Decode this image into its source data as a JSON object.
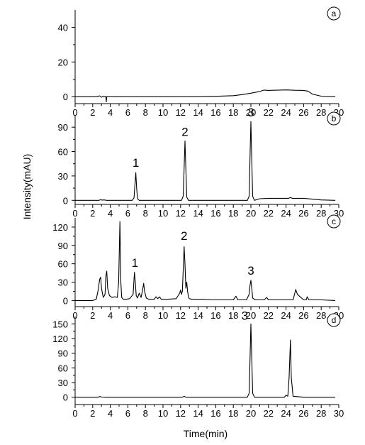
{
  "figure": {
    "ylabel": "Intensity(mAU)",
    "xlabel": "Time(min)"
  },
  "chart_data": [
    {
      "type": "line",
      "panel_label": "a",
      "x_ticks": [
        0,
        2,
        4,
        6,
        8,
        10,
        12,
        14,
        16,
        18,
        20,
        22,
        24,
        26,
        28,
        30
      ],
      "y_ticks": [
        0,
        20,
        40
      ],
      "xlim": [
        0,
        30
      ],
      "ylim": [
        -4,
        50
      ],
      "peak_labels": [],
      "series": [
        {
          "x": [
            0,
            2.5,
            2.8,
            3.0,
            3.2,
            3.5,
            3.55,
            3.6,
            3.8,
            6,
            10,
            14,
            16,
            18,
            19,
            20,
            21,
            21.5,
            22,
            24,
            25,
            26,
            26.5,
            27,
            28,
            29.6
          ],
          "y": [
            0,
            0,
            0.5,
            -0.3,
            0.2,
            0,
            -3,
            0,
            0,
            0,
            0,
            0,
            0.2,
            0.6,
            1.2,
            2.0,
            3.0,
            3.8,
            3.6,
            3.9,
            3.7,
            3.6,
            3.2,
            1.5,
            0.3,
            0
          ]
        }
      ]
    },
    {
      "type": "line",
      "panel_label": "b",
      "x_ticks": [
        0,
        2,
        4,
        6,
        8,
        10,
        12,
        14,
        16,
        18,
        20,
        22,
        24,
        26,
        28,
        30
      ],
      "y_ticks": [
        0,
        30,
        60,
        90
      ],
      "xlim": [
        0,
        30
      ],
      "ylim": [
        -5,
        105
      ],
      "peak_labels": [
        {
          "text": "1",
          "x": 6.9,
          "y": 36
        },
        {
          "text": "2",
          "x": 12.5,
          "y": 74
        },
        {
          "text": "3",
          "x": 20.0,
          "y": 98
        }
      ],
      "series": [
        {
          "x": [
            0,
            2.7,
            2.9,
            3.1,
            3.3,
            3.6,
            6.5,
            6.7,
            6.8,
            6.9,
            7.0,
            7.1,
            7.3,
            12.1,
            12.3,
            12.4,
            12.5,
            12.6,
            12.7,
            12.9,
            19.6,
            19.8,
            19.9,
            20.0,
            20.1,
            20.2,
            20.4,
            21,
            22,
            24.3,
            24.5,
            24.7,
            26,
            27,
            28,
            29.6
          ],
          "y": [
            0,
            0,
            0.8,
            0.3,
            0.5,
            0,
            0,
            3,
            18,
            34,
            15,
            2,
            0,
            0,
            5,
            40,
            73,
            40,
            4,
            0,
            0,
            5,
            55,
            97,
            50,
            5,
            0,
            2,
            2.5,
            2.5,
            3.5,
            2.5,
            2.5,
            1.5,
            0.5,
            0
          ]
        }
      ]
    },
    {
      "type": "line",
      "panel_label": "c",
      "x_ticks": [
        0,
        2,
        4,
        6,
        8,
        10,
        12,
        14,
        16,
        18,
        20,
        22,
        24,
        26,
        28,
        30
      ],
      "y_ticks": [
        0,
        30,
        60,
        90,
        120
      ],
      "xlim": [
        0,
        30
      ],
      "ylim": [
        -10,
        135
      ],
      "peak_labels": [
        {
          "text": "1",
          "x": 6.8,
          "y": 48
        },
        {
          "text": "2",
          "x": 12.4,
          "y": 92
        },
        {
          "text": "3",
          "x": 20.0,
          "y": 35
        }
      ],
      "series": [
        {
          "x": [
            0,
            2.0,
            2.4,
            2.6,
            2.8,
            2.9,
            3.0,
            3.2,
            3.4,
            3.5,
            3.6,
            3.7,
            3.9,
            4.2,
            4.5,
            4.8,
            4.95,
            5.1,
            5.2,
            5.3,
            5.5,
            5.8,
            6.2,
            6.6,
            6.75,
            6.85,
            6.95,
            7.1,
            7.3,
            7.5,
            7.65,
            7.8,
            7.9,
            8.1,
            8.4,
            9.0,
            9.2,
            9.4,
            9.6,
            9.8,
            10.5,
            11.5,
            11.9,
            12.0,
            12.1,
            12.2,
            12.3,
            12.4,
            12.5,
            12.6,
            12.7,
            12.8,
            12.9,
            13.0,
            13.3,
            13.8,
            14.5,
            15.5,
            16.5,
            18.0,
            18.3,
            18.5,
            18.7,
            19.5,
            19.8,
            19.9,
            20.0,
            20.1,
            20.2,
            20.5,
            21.5,
            21.8,
            22.0,
            22.3,
            23.5,
            24.8,
            25.0,
            25.1,
            25.3,
            26.0,
            26.3,
            26.4,
            26.6,
            28.0,
            29.6
          ],
          "y": [
            0,
            0,
            2,
            15,
            35,
            38,
            20,
            5,
            10,
            40,
            48,
            20,
            8,
            5,
            6,
            5,
            30,
            129,
            30,
            5,
            2,
            2,
            3,
            10,
            46,
            30,
            8,
            4,
            12,
            5,
            15,
            28,
            15,
            4,
            2,
            2,
            6,
            3,
            6,
            2,
            2,
            3,
            12,
            17,
            10,
            15,
            50,
            88,
            60,
            20,
            30,
            15,
            5,
            3,
            2,
            2,
            2,
            1,
            1,
            1,
            7,
            1,
            1,
            1,
            10,
            25,
            33,
            20,
            4,
            1,
            1,
            5,
            1,
            1,
            1,
            1,
            12,
            18,
            10,
            1,
            1,
            6,
            1,
            1,
            0
          ]
        }
      ]
    },
    {
      "type": "line",
      "panel_label": "d",
      "x_ticks": [
        0,
        2,
        4,
        6,
        8,
        10,
        12,
        14,
        16,
        18,
        20,
        22,
        24,
        26,
        28,
        30
      ],
      "y_ticks": [
        0,
        30,
        60,
        90,
        120,
        150
      ],
      "xlim": [
        0,
        30
      ],
      "ylim": [
        -15,
        165
      ],
      "peak_labels": [
        {
          "text": "3",
          "x": 19.3,
          "y": 150
        }
      ],
      "series": [
        {
          "x": [
            0,
            2.6,
            2.8,
            3.0,
            3.5,
            6,
            10,
            12.2,
            12.4,
            12.6,
            15,
            19.6,
            19.8,
            19.9,
            20.0,
            20.1,
            20.2,
            20.4,
            22,
            23.8,
            24.0,
            24.2,
            24.35,
            24.5,
            24.6,
            24.8,
            26,
            28,
            29.6
          ],
          "y": [
            0,
            0,
            1.5,
            0.3,
            0,
            0,
            0,
            0,
            2,
            0,
            0,
            0,
            8,
            80,
            150,
            80,
            8,
            0,
            0,
            0,
            4,
            2,
            40,
            117,
            40,
            2,
            0,
            0,
            0
          ]
        }
      ]
    }
  ]
}
